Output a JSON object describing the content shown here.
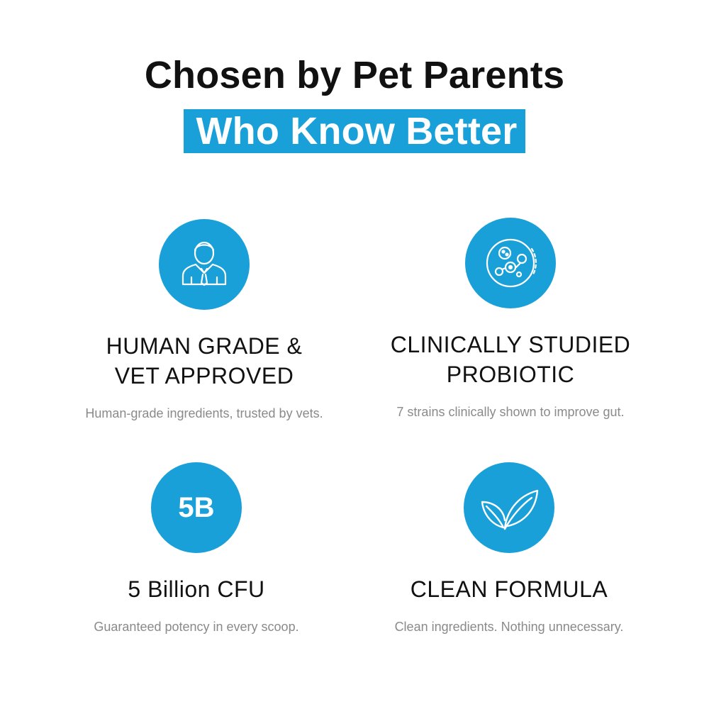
{
  "header": {
    "line1": "Chosen by Pet Parents",
    "line2": "Who Know Better"
  },
  "accent_color": "#1aa0d8",
  "features": [
    {
      "icon": "vet-person-icon",
      "title_line1": "HUMAN GRADE &",
      "title_line2": "VET APPROVED",
      "description": "Human-grade ingredients, trusted by vets."
    },
    {
      "icon": "probiotic-bacteria-icon",
      "title_line1": "CLINICALLY STUDIED",
      "title_line2": "PROBIOTIC",
      "description": "7 strains clinically shown to improve gut."
    },
    {
      "icon_text": "5B",
      "title_line1": "5 Billion CFU",
      "description": "Guaranteed potency in every scoop."
    },
    {
      "icon": "leaves-icon",
      "title_line1": "CLEAN FORMULA",
      "description": "Clean ingredients. Nothing unnecessary."
    }
  ]
}
